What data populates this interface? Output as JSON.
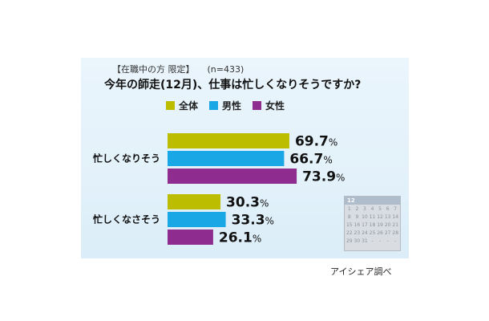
{
  "header": {
    "condition": "【在職中の方 限定】",
    "sample": "(n=433)"
  },
  "chart_data": {
    "type": "bar",
    "orientation": "horizontal",
    "title": "今年の師走(12月)、仕事は忙しくなりそうですか?",
    "categories": [
      "忙しくなりそう",
      "忙しくなさそう"
    ],
    "series": [
      {
        "name": "全体",
        "color": "#bcbd00",
        "values": [
          69.7,
          30.3
        ]
      },
      {
        "name": "男性",
        "color": "#1aa7e5",
        "values": [
          66.7,
          33.3
        ]
      },
      {
        "name": "女性",
        "color": "#8e2d8f",
        "values": [
          73.9,
          26.1
        ]
      }
    ],
    "value_suffix": "%",
    "xlim": [
      0,
      100
    ],
    "legend_position": "top",
    "grid": false
  },
  "calendar": {
    "month": "12",
    "days": [
      "1",
      "2",
      "3",
      "4",
      "5",
      "6",
      "7",
      "8",
      "9",
      "10",
      "11",
      "12",
      "13",
      "14",
      "15",
      "16",
      "17",
      "18",
      "19",
      "20",
      "21",
      "22",
      "23",
      "24",
      "25",
      "26",
      "27",
      "28",
      "29",
      "30",
      "31",
      "-",
      "-",
      "-",
      "-"
    ]
  },
  "source": "アイシェア調べ"
}
